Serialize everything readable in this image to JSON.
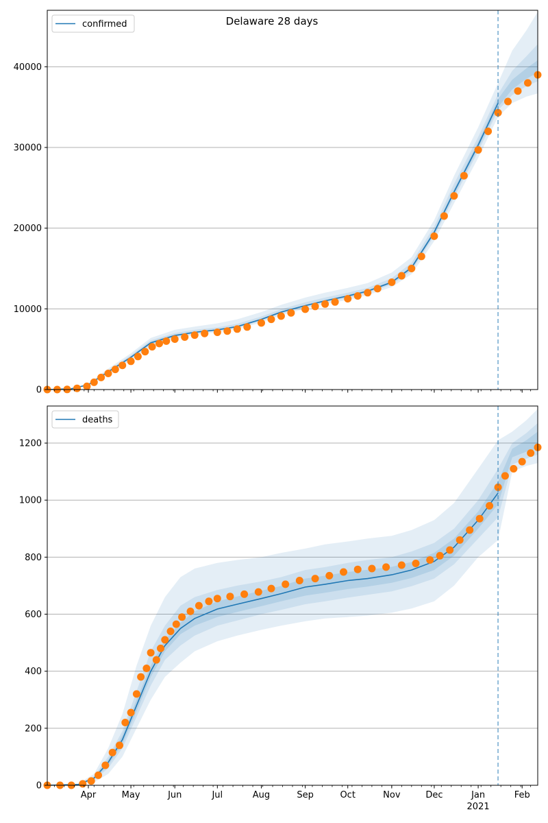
{
  "title": "Delaware 28 days",
  "colors": {
    "model": "#1f77b4",
    "observed": "#ff7f0e",
    "band": "#1f77b4",
    "grid": "#b0b0b0",
    "vline": "#1f77b4"
  },
  "month_labels": [
    "Apr",
    "May",
    "Jun",
    "Jul",
    "Aug",
    "Sep",
    "Oct",
    "Nov",
    "Dec",
    "Jan",
    "Feb"
  ],
  "year_label": "2021",
  "chart_data": [
    {
      "type": "line",
      "name": "confirmed-panel",
      "legend": "confirmed",
      "legend_position": "top-left",
      "grid": true,
      "x_range": [
        "2020-03-03",
        "2021-02-12"
      ],
      "forecast_start": "2021-01-15",
      "ylim": [
        0,
        47000
      ],
      "yticks": [
        0,
        10000,
        20000,
        30000,
        40000
      ],
      "ytick_labels": [
        "0",
        "10000",
        "20000",
        "30000",
        "40000"
      ],
      "model_curve": [
        [
          "2020-03-03",
          0
        ],
        [
          "2020-03-20",
          100
        ],
        [
          "2020-04-01",
          600
        ],
        [
          "2020-04-15",
          2200
        ],
        [
          "2020-05-01",
          4000
        ],
        [
          "2020-05-15",
          5800
        ],
        [
          "2020-06-01",
          6700
        ],
        [
          "2020-06-15",
          7100
        ],
        [
          "2020-07-01",
          7400
        ],
        [
          "2020-07-15",
          7800
        ],
        [
          "2020-08-01",
          8700
        ],
        [
          "2020-08-15",
          9600
        ],
        [
          "2020-09-01",
          10400
        ],
        [
          "2020-09-15",
          11000
        ],
        [
          "2020-10-01",
          11600
        ],
        [
          "2020-10-15",
          12200
        ],
        [
          "2020-11-01",
          13300
        ],
        [
          "2020-11-15",
          15100
        ],
        [
          "2020-12-01",
          19500
        ],
        [
          "2020-12-15",
          24500
        ],
        [
          "2021-01-01",
          30300
        ],
        [
          "2021-01-15",
          35500
        ]
      ],
      "bands": {
        "x": [
          "2020-03-03",
          "2020-03-20",
          "2020-04-01",
          "2020-04-15",
          "2020-05-01",
          "2020-05-15",
          "2020-06-01",
          "2020-06-15",
          "2020-07-01",
          "2020-07-15",
          "2020-08-01",
          "2020-08-15",
          "2020-09-01",
          "2020-09-15",
          "2020-10-01",
          "2020-10-15",
          "2020-11-01",
          "2020-11-15",
          "2020-12-01",
          "2020-12-15",
          "2021-01-01",
          "2021-01-15",
          "2021-01-25",
          "2021-02-04",
          "2021-02-12"
        ],
        "outer_low": [
          0,
          60,
          450,
          1900,
          3600,
          5300,
          6300,
          6800,
          7100,
          7500,
          8300,
          9200,
          10000,
          10600,
          11100,
          11700,
          12700,
          14300,
          18400,
          23100,
          28700,
          33800,
          35500,
          36300,
          36700
        ],
        "outer_high": [
          0,
          140,
          750,
          2600,
          4500,
          6400,
          7400,
          7800,
          8200,
          8700,
          9600,
          10500,
          11400,
          12000,
          12600,
          13200,
          14500,
          16400,
          21000,
          26500,
          32500,
          38000,
          42000,
          44500,
          46800
        ],
        "mid_low": [
          0,
          80,
          520,
          2050,
          3800,
          5550,
          6500,
          6950,
          7250,
          7650,
          8500,
          9400,
          10200,
          10800,
          11350,
          11950,
          13000,
          14700,
          19000,
          23800,
          29500,
          34600,
          36500,
          37600,
          38200
        ],
        "mid_high": [
          0,
          120,
          680,
          2400,
          4250,
          6100,
          7000,
          7400,
          7700,
          8150,
          9050,
          9950,
          10800,
          11400,
          12000,
          12600,
          13800,
          15700,
          20200,
          25500,
          31300,
          36600,
          39500,
          41300,
          42800
        ],
        "inner_low": [
          0,
          90,
          560,
          2130,
          3900,
          5680,
          6600,
          7030,
          7330,
          7730,
          8600,
          9500,
          10300,
          10900,
          11480,
          12080,
          13150,
          14900,
          19250,
          24150,
          29900,
          35000,
          37200,
          38500,
          39300
        ],
        "inner_high": [
          0,
          110,
          640,
          2270,
          4100,
          5920,
          6800,
          7170,
          7470,
          7870,
          8800,
          9700,
          10500,
          11100,
          11720,
          12320,
          13450,
          15300,
          19750,
          24850,
          30700,
          36000,
          38400,
          39800,
          40800
        ]
      },
      "observed": [
        [
          "2020-03-03",
          0
        ],
        [
          "2020-03-10",
          0
        ],
        [
          "2020-03-17",
          20
        ],
        [
          "2020-03-24",
          150
        ],
        [
          "2020-03-31",
          400
        ],
        [
          "2020-04-05",
          900
        ],
        [
          "2020-04-10",
          1500
        ],
        [
          "2020-04-15",
          2000
        ],
        [
          "2020-04-20",
          2500
        ],
        [
          "2020-04-25",
          3000
        ],
        [
          "2020-05-01",
          3500
        ],
        [
          "2020-05-06",
          4100
        ],
        [
          "2020-05-11",
          4700
        ],
        [
          "2020-05-16",
          5300
        ],
        [
          "2020-05-21",
          5700
        ],
        [
          "2020-05-26",
          6000
        ],
        [
          "2020-06-01",
          6250
        ],
        [
          "2020-06-08",
          6500
        ],
        [
          "2020-06-15",
          6750
        ],
        [
          "2020-06-22",
          6950
        ],
        [
          "2020-07-01",
          7100
        ],
        [
          "2020-07-08",
          7250
        ],
        [
          "2020-07-15",
          7500
        ],
        [
          "2020-07-22",
          7750
        ],
        [
          "2020-08-01",
          8250
        ],
        [
          "2020-08-08",
          8700
        ],
        [
          "2020-08-15",
          9100
        ],
        [
          "2020-08-22",
          9500
        ],
        [
          "2020-09-01",
          9950
        ],
        [
          "2020-09-08",
          10300
        ],
        [
          "2020-09-15",
          10600
        ],
        [
          "2020-09-22",
          10850
        ],
        [
          "2020-10-01",
          11250
        ],
        [
          "2020-10-08",
          11600
        ],
        [
          "2020-10-15",
          12000
        ],
        [
          "2020-10-22",
          12500
        ],
        [
          "2020-11-01",
          13300
        ],
        [
          "2020-11-08",
          14100
        ],
        [
          "2020-11-15",
          15000
        ],
        [
          "2020-11-22",
          16500
        ],
        [
          "2020-12-01",
          19000
        ],
        [
          "2020-12-08",
          21500
        ],
        [
          "2020-12-15",
          24000
        ],
        [
          "2020-12-22",
          26500
        ],
        [
          "2021-01-01",
          29700
        ],
        [
          "2021-01-08",
          32000
        ],
        [
          "2021-01-15",
          34300
        ],
        [
          "2021-01-22",
          35700
        ],
        [
          "2021-01-29",
          37000
        ],
        [
          "2021-02-05",
          38000
        ],
        [
          "2021-02-12",
          39000
        ]
      ]
    },
    {
      "type": "line",
      "name": "deaths-panel",
      "legend": "deaths",
      "legend_position": "top-left",
      "grid": true,
      "x_range": [
        "2020-03-03",
        "2021-02-12"
      ],
      "forecast_start": "2021-01-15",
      "ylim": [
        0,
        1330
      ],
      "yticks": [
        0,
        200,
        400,
        600,
        800,
        1000,
        1200
      ],
      "ytick_labels": [
        "0",
        "200",
        "400",
        "600",
        "800",
        "1000",
        "1200"
      ],
      "model_curve": [
        [
          "2020-03-03",
          0
        ],
        [
          "2020-03-25",
          3
        ],
        [
          "2020-04-05",
          25
        ],
        [
          "2020-04-15",
          80
        ],
        [
          "2020-04-25",
          160
        ],
        [
          "2020-05-05",
          280
        ],
        [
          "2020-05-15",
          400
        ],
        [
          "2020-05-25",
          490
        ],
        [
          "2020-06-05",
          550
        ],
        [
          "2020-06-15",
          585
        ],
        [
          "2020-07-01",
          618
        ],
        [
          "2020-07-15",
          635
        ],
        [
          "2020-08-01",
          655
        ],
        [
          "2020-08-15",
          672
        ],
        [
          "2020-09-01",
          695
        ],
        [
          "2020-09-15",
          705
        ],
        [
          "2020-10-01",
          718
        ],
        [
          "2020-10-15",
          725
        ],
        [
          "2020-11-01",
          738
        ],
        [
          "2020-11-15",
          755
        ],
        [
          "2020-12-01",
          785
        ],
        [
          "2020-12-15",
          835
        ],
        [
          "2021-01-01",
          930
        ],
        [
          "2021-01-15",
          1025
        ]
      ],
      "bands": {
        "x": [
          "2020-03-03",
          "2020-03-25",
          "2020-04-05",
          "2020-04-15",
          "2020-04-25",
          "2020-05-05",
          "2020-05-15",
          "2020-05-25",
          "2020-06-05",
          "2020-06-15",
          "2020-07-01",
          "2020-07-15",
          "2020-08-01",
          "2020-08-15",
          "2020-09-01",
          "2020-09-15",
          "2020-10-01",
          "2020-10-15",
          "2020-11-01",
          "2020-11-15",
          "2020-12-01",
          "2020-12-15",
          "2021-01-01",
          "2021-01-15",
          "2021-01-25",
          "2021-02-04",
          "2021-02-12"
        ],
        "outer_low": [
          0,
          1,
          10,
          40,
          100,
          200,
          300,
          380,
          430,
          470,
          505,
          525,
          545,
          560,
          575,
          585,
          590,
          595,
          605,
          620,
          645,
          700,
          800,
          860,
          1100,
          1120,
          1130
        ],
        "outer_high": [
          0,
          6,
          40,
          130,
          250,
          420,
          560,
          660,
          730,
          760,
          780,
          790,
          800,
          815,
          830,
          845,
          855,
          865,
          875,
          895,
          930,
          990,
          1110,
          1210,
          1240,
          1280,
          1320
        ],
        "mid_low": [
          0,
          2,
          18,
          60,
          130,
          240,
          350,
          440,
          490,
          525,
          560,
          578,
          600,
          615,
          635,
          645,
          658,
          668,
          680,
          698,
          725,
          775,
          865,
          940,
          1125,
          1145,
          1160
        ],
        "mid_high": [
          0,
          4,
          32,
          100,
          190,
          330,
          470,
          560,
          630,
          660,
          685,
          700,
          715,
          730,
          755,
          765,
          780,
          790,
          800,
          820,
          850,
          900,
          1000,
          1110,
          1200,
          1235,
          1270
        ],
        "inner_low": [
          0,
          2,
          21,
          70,
          145,
          260,
          380,
          470,
          530,
          560,
          590,
          608,
          628,
          645,
          665,
          675,
          688,
          697,
          710,
          727,
          755,
          805,
          900,
          985,
          1150,
          1170,
          1180
        ],
        "inner_high": [
          0,
          4,
          29,
          90,
          175,
          300,
          420,
          510,
          570,
          610,
          645,
          662,
          682,
          699,
          725,
          735,
          748,
          756,
          766,
          783,
          815,
          865,
          960,
          1065,
          1180,
          1210,
          1240
        ]
      },
      "observed": [
        [
          "2020-03-03",
          0
        ],
        [
          "2020-03-12",
          0
        ],
        [
          "2020-03-20",
          0
        ],
        [
          "2020-03-28",
          5
        ],
        [
          "2020-04-03",
          15
        ],
        [
          "2020-04-08",
          35
        ],
        [
          "2020-04-13",
          70
        ],
        [
          "2020-04-18",
          115
        ],
        [
          "2020-04-23",
          140
        ],
        [
          "2020-04-27",
          220
        ],
        [
          "2020-05-01",
          255
        ],
        [
          "2020-05-05",
          320
        ],
        [
          "2020-05-08",
          380
        ],
        [
          "2020-05-12",
          410
        ],
        [
          "2020-05-15",
          465
        ],
        [
          "2020-05-19",
          440
        ],
        [
          "2020-05-22",
          480
        ],
        [
          "2020-05-25",
          510
        ],
        [
          "2020-05-29",
          540
        ],
        [
          "2020-06-02",
          565
        ],
        [
          "2020-06-06",
          590
        ],
        [
          "2020-06-12",
          610
        ],
        [
          "2020-06-18",
          630
        ],
        [
          "2020-06-25",
          645
        ],
        [
          "2020-07-01",
          655
        ],
        [
          "2020-07-10",
          662
        ],
        [
          "2020-07-20",
          670
        ],
        [
          "2020-07-30",
          678
        ],
        [
          "2020-08-08",
          690
        ],
        [
          "2020-08-18",
          705
        ],
        [
          "2020-08-28",
          718
        ],
        [
          "2020-09-08",
          725
        ],
        [
          "2020-09-18",
          735
        ],
        [
          "2020-09-28",
          748
        ],
        [
          "2020-10-08",
          757
        ],
        [
          "2020-10-18",
          760
        ],
        [
          "2020-10-28",
          765
        ],
        [
          "2020-11-08",
          772
        ],
        [
          "2020-11-18",
          778
        ],
        [
          "2020-11-28",
          790
        ],
        [
          "2020-12-05",
          805
        ],
        [
          "2020-12-12",
          825
        ],
        [
          "2020-12-19",
          860
        ],
        [
          "2020-12-26",
          895
        ],
        [
          "2021-01-02",
          935
        ],
        [
          "2021-01-09",
          980
        ],
        [
          "2021-01-15",
          1045
        ],
        [
          "2021-01-20",
          1085
        ],
        [
          "2021-01-26",
          1110
        ],
        [
          "2021-02-01",
          1135
        ],
        [
          "2021-02-07",
          1165
        ],
        [
          "2021-02-12",
          1185
        ]
      ]
    }
  ]
}
